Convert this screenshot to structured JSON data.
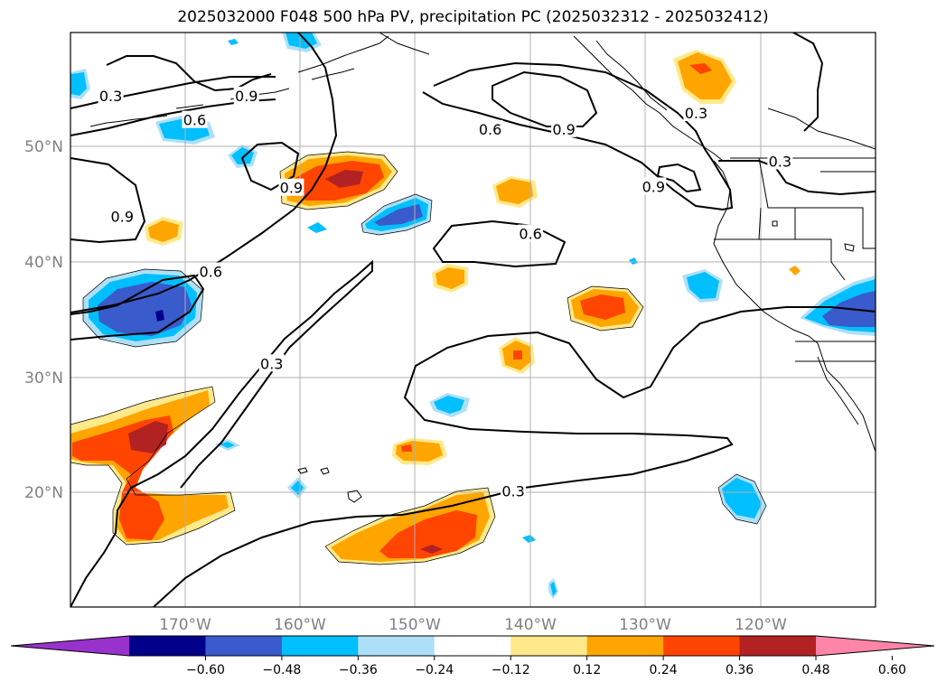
{
  "title": "2025032000 F048 500 hPa PV, precipitation PC (2025032312 - 2025032412)",
  "axes": {
    "lat_labels": [
      "50°N",
      "40°N",
      "30°N",
      "20°N"
    ],
    "lon_labels": [
      "170°W",
      "160°W",
      "150°W",
      "140°W",
      "130°W",
      "120°W"
    ],
    "label_color": "#808080"
  },
  "contour_labels": [
    {
      "text": "0.3",
      "lon": -176.5,
      "lat": 54.5
    },
    {
      "text": "0.9",
      "lon": -164.7,
      "lat": 54.5
    },
    {
      "text": "0.6",
      "lon": -169.2,
      "lat": 52.4
    },
    {
      "text": "0.9",
      "lon": -175.5,
      "lat": 44.0
    },
    {
      "text": "0.9",
      "lon": -160.8,
      "lat": 46.5
    },
    {
      "text": "0.6",
      "lon": -167.8,
      "lat": 39.2
    },
    {
      "text": "0.3",
      "lon": -162.5,
      "lat": 31.2
    },
    {
      "text": "0.6",
      "lon": -143.5,
      "lat": 51.6
    },
    {
      "text": "0.9",
      "lon": -137.1,
      "lat": 51.6
    },
    {
      "text": "0.6",
      "lon": -140.0,
      "lat": 42.5
    },
    {
      "text": "0.9",
      "lon": -129.3,
      "lat": 46.6
    },
    {
      "text": "0.3",
      "lon": -125.6,
      "lat": 53.0
    },
    {
      "text": "0.3",
      "lon": -118.3,
      "lat": 48.8
    },
    {
      "text": "0.3",
      "lon": -141.5,
      "lat": 20.1
    }
  ],
  "colorbar": {
    "ticks": [
      "−0.60",
      "−0.48",
      "−0.36",
      "−0.24",
      "−0.12",
      "0.12",
      "0.24",
      "0.36",
      "0.48",
      "0.60"
    ],
    "colors": [
      "#9932CC",
      "#00008B",
      "#3A5BCB",
      "#00BFFF",
      "#ADE0F8",
      "#FFFFFF",
      "#FFE98A",
      "#FFA500",
      "#FF4500",
      "#B22222",
      "#FF85A8"
    ]
  },
  "colors": {
    "strong_neg": "#00008B",
    "mid_neg": "#3A5BCB",
    "neg": "#00BFFF",
    "weak_neg": "#ADE0F8",
    "weak_pos": "#FFE98A",
    "pos": "#FFA500",
    "mid_pos": "#FF4500",
    "strong_pos": "#B22222"
  }
}
